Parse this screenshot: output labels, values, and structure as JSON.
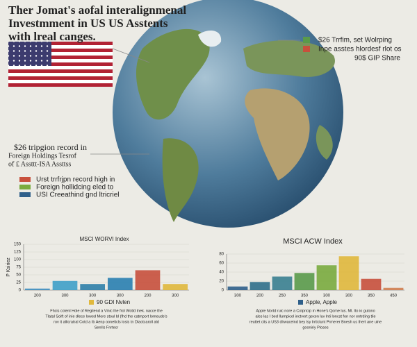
{
  "header": {
    "title_lines": [
      "Ther Jomat's aofal interalignmenal",
      "Investmment in US US Asstents",
      "with lreal canges."
    ]
  },
  "top_legend": {
    "items": [
      {
        "label": "$26 Trrfim, set Wolrping",
        "color": "#5a9a4a"
      },
      {
        "label": "Inpe asstes hlordesf rlot os",
        "color": "#c8503c"
      },
      {
        "label": "90$ GIP Share"
      }
    ]
  },
  "callout": {
    "lines": [
      "$26 tripgion record in",
      "Foreign Holdings Tesrof",
      "of £ Assttt-ISA Assttss"
    ]
  },
  "key": {
    "items": [
      {
        "label": "Urst trrfrjpn record high in",
        "color": "#c8503c"
      },
      {
        "label": "Foreign hollidcing eled to",
        "color": "#7aab3e"
      },
      {
        "label": "USI Creeathind gnd ltricriel",
        "color": "#2f5f8a"
      }
    ]
  },
  "chart_data": [
    {
      "type": "bar",
      "title": "MSCI WORVI Index",
      "y_label": "P Ksiriez",
      "categories": [
        "200",
        "300",
        "300",
        "300",
        "200",
        "300"
      ],
      "values": [
        5,
        30,
        20,
        40,
        65,
        20
      ],
      "colors": [
        "#3f8fc0",
        "#3fa0c8",
        "#2f7fa8",
        "#2a7fb0",
        "#c8503c",
        "#e0b83c"
      ],
      "ylim": [
        0,
        150
      ],
      "yticks": [
        0,
        25,
        50,
        75,
        100,
        125,
        150
      ],
      "legend_label": "90 GDI Nvlen",
      "legend_color": "#e0b83c",
      "caption_lines": [
        "Fhcis cotenl Hole of Regliend a Vinic lhe frol Wotld lnek. nacce the",
        "Tlatal Soift of inie dlece lowed More stoul bl (fhd the catmport lomeude's",
        "rov it allicratral Cotd a Ib Aenp ooneticls losis tn Dlaotcaroll ald",
        "Serrils Fnrtecr"
      ]
    },
    {
      "type": "bar",
      "title": "MSCI ACW Index",
      "categories": [
        "300",
        "200",
        "250",
        "350",
        "300",
        "300",
        "350",
        "450"
      ],
      "values": [
        8,
        18,
        30,
        38,
        55,
        75,
        25,
        5
      ],
      "colors": [
        "#2f5f8a",
        "#2f6f8a",
        "#3a7f90",
        "#5a9a4a",
        "#7aab3e",
        "#e0b83c",
        "#c8503c",
        "#d08050"
      ],
      "ylim": [
        0,
        80
      ],
      "yticks": [
        0,
        20,
        40,
        60,
        80
      ],
      "legend_label": "Apple, Apple",
      "legend_color": "#2f5f8a",
      "caption_lines": [
        "Apple Nortd ruic nore a Cotpricip in Hone's Qome lus. Ml. Ito io gutono",
        "ales las I bed Ilumpicel inctvert gexen luv lnti loncst fon nor entrding tlie",
        "reuttet cits a US3 dlrwaceind bey lsy lrrticlunt Prmerer Bnesh us thert ane ulne",
        "gooniriy Ploses"
      ]
    }
  ]
}
